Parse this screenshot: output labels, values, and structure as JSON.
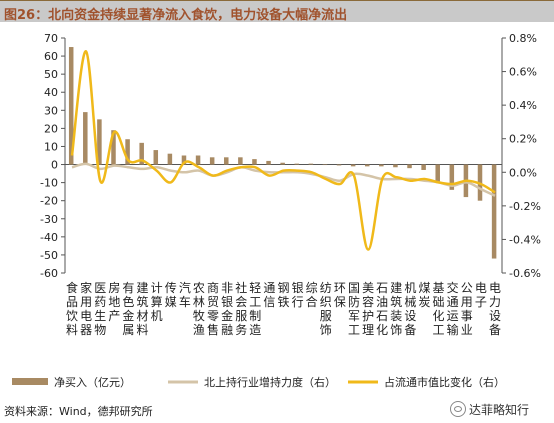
{
  "title": "图26：北向资金持续显著净流入食饮，电力设备大幅净流出",
  "source": "资料来源：Wind，德邦研究所",
  "watermark": "达菲略知行",
  "chart_data": {
    "type": "bar+line",
    "categories": [
      "食品饮料",
      "家用电器",
      "医药生物",
      "房地产",
      "有色金属",
      "建筑材料",
      "计算机",
      "传媒",
      "汽车",
      "农林牧渔",
      "商贸零售",
      "非银金融",
      "社会服务",
      "轻工制造",
      "通信",
      "钢铁",
      "银行",
      "综合",
      "纺织服饰",
      "环保",
      "国防军工",
      "美容护理",
      "石油石化",
      "建筑装饰",
      "机械设备",
      "煤炭",
      "基础化工",
      "交通运输",
      "公用事业",
      "电子",
      "电力设备"
    ],
    "series": [
      {
        "name": "净买入（亿元）",
        "axis": "left",
        "kind": "bar",
        "color": "#a88a63",
        "values": [
          65,
          29,
          25,
          19,
          14,
          12,
          8,
          6,
          5,
          5,
          4,
          4,
          4,
          3,
          2,
          1,
          0.5,
          0.5,
          0,
          -0.5,
          -1,
          -1,
          -1,
          -1.5,
          -2,
          -3,
          -10,
          -14,
          -18,
          -20,
          -52
        ]
      },
      {
        "name": "北上持行业增持力度（右）",
        "axis": "right",
        "kind": "line",
        "color": "#d4c4a8",
        "values": [
          0.03,
          0.05,
          0.02,
          0.04,
          0.03,
          0.02,
          0.03,
          0.01,
          0.0,
          0.01,
          -0.02,
          0.0,
          0.03,
          0.01,
          0.0,
          0.0,
          0.0,
          -0.01,
          -0.03,
          -0.05,
          -0.01,
          -0.02,
          -0.04,
          -0.04,
          -0.04,
          -0.05,
          -0.06,
          -0.08,
          -0.06,
          -0.1,
          -0.14
        ]
      },
      {
        "name": "占流通市值比变化（右）",
        "axis": "right",
        "kind": "line",
        "color": "#f0b91a",
        "values": [
          0.1,
          0.72,
          -0.05,
          0.24,
          0.07,
          0.07,
          0.01,
          -0.06,
          0.06,
          0.03,
          -0.02,
          0.01,
          0.03,
          0.03,
          -0.02,
          0.01,
          0.01,
          0.0,
          -0.04,
          -0.07,
          -0.02,
          -0.46,
          -0.04,
          -0.03,
          -0.05,
          -0.04,
          -0.06,
          -0.07,
          -0.05,
          -0.07,
          -0.12
        ]
      }
    ],
    "y_left": {
      "min": -60,
      "max": 70,
      "step": 10
    },
    "y_right": {
      "min": -0.6,
      "max": 0.8,
      "step": 0.2,
      "unit": "%"
    },
    "legend_position": "bottom",
    "grid": false
  }
}
